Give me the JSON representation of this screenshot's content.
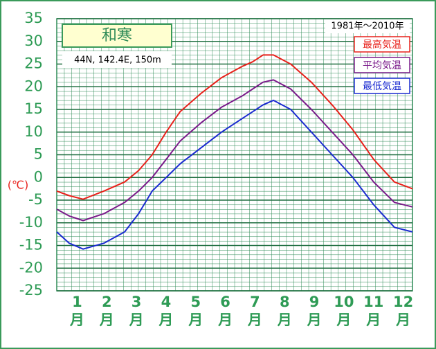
{
  "chart_data": {
    "type": "line",
    "title": "和寒",
    "subtitle": "44N,  142.4E,  150m",
    "period": "1981年～2010年",
    "y_label": "(℃)",
    "x_unit": "月",
    "x": [
      0,
      0.42,
      0.89,
      1.59,
      2.29,
      2.76,
      3.22,
      3.69,
      4.16,
      4.86,
      5.56,
      6.26,
      6.61,
      6.96,
      7.31,
      7.89,
      8.59,
      9.29,
      9.99,
      10.69,
      11.39,
      12
    ],
    "series": [
      {
        "name": "最高気温",
        "color": "#e8201a",
        "values": [
          -3,
          -4,
          -4.8,
          -3,
          -1,
          1.5,
          5,
          10,
          14.5,
          18.5,
          22,
          24.5,
          25.5,
          27,
          27,
          25,
          21,
          16,
          10.5,
          4,
          -1,
          -2.5
        ]
      },
      {
        "name": "平均気温",
        "color": "#7a1a8a",
        "values": [
          -7,
          -8.5,
          -9.5,
          -8,
          -5.5,
          -3,
          0,
          4,
          8,
          12,
          15.5,
          18,
          19.5,
          21,
          21.5,
          19.5,
          15,
          10,
          5,
          -1,
          -5.5,
          -6.5
        ]
      },
      {
        "name": "最低気温",
        "color": "#1a2ad0",
        "values": [
          -12,
          -14.5,
          -15.8,
          -14.5,
          -12,
          -8,
          -3,
          0,
          3,
          6.5,
          10,
          13,
          14.5,
          16,
          17,
          15,
          10,
          5,
          0,
          -6,
          -11,
          -12
        ]
      }
    ],
    "xlim": [
      0,
      12
    ],
    "xticks": [
      {
        "value": 0.5,
        "label": "1"
      },
      {
        "value": 1.5,
        "label": "2"
      },
      {
        "value": 2.5,
        "label": "3"
      },
      {
        "value": 3.5,
        "label": "4"
      },
      {
        "value": 4.5,
        "label": "5"
      },
      {
        "value": 5.5,
        "label": "6"
      },
      {
        "value": 6.5,
        "label": "7"
      },
      {
        "value": 7.5,
        "label": "8"
      },
      {
        "value": 8.5,
        "label": "9"
      },
      {
        "value": 9.5,
        "label": "10"
      },
      {
        "value": 10.5,
        "label": "11"
      },
      {
        "value": 11.5,
        "label": "12"
      }
    ],
    "ylim": [
      -25,
      35
    ],
    "yticks": [
      -25,
      -20,
      -15,
      -10,
      -5,
      0,
      5,
      10,
      15,
      20,
      25,
      30,
      35
    ],
    "grid": true
  }
}
